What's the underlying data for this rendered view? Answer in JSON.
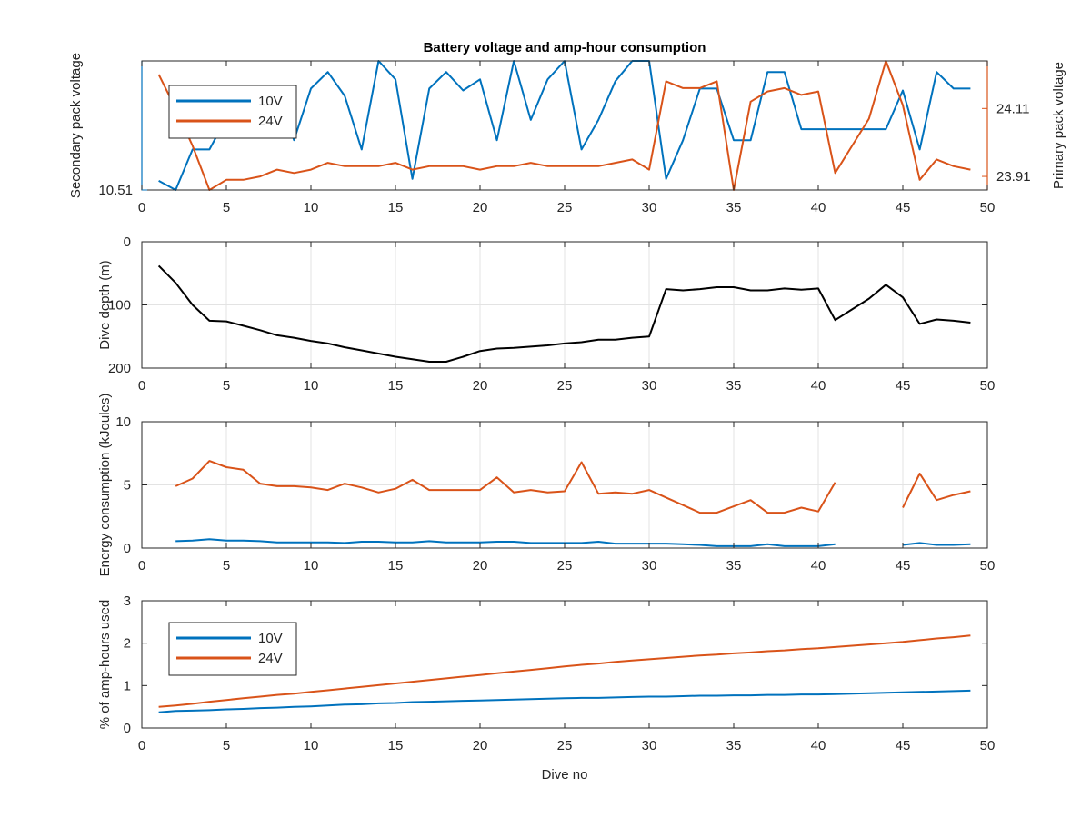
{
  "figure_title": "Battery voltage and amp-hour consumption",
  "x_axis_label": "Dive no",
  "chart_data": [
    {
      "type": "line",
      "title": "Battery voltage and amp-hour consumption",
      "xlabel": "",
      "xlim": [
        0,
        50
      ],
      "xticks": [
        0,
        5,
        10,
        15,
        20,
        25,
        30,
        35,
        40,
        45,
        50
      ],
      "legend": "top-left",
      "grid": false,
      "dual_y_axis": true,
      "y_left": {
        "label": "Secondary pack voltage",
        "ylim": [
          10.51,
          10.58
        ],
        "ticks": [
          10.51
        ],
        "tick_labels": [
          "10.51"
        ],
        "color": "#0072BD"
      },
      "y_right": {
        "label": "Primary pack voltage",
        "ylim": [
          23.87,
          24.25
        ],
        "ticks": [
          23.91,
          24.11
        ],
        "tick_labels": [
          "23.91",
          "24.11"
        ],
        "color": "#D95319"
      },
      "x": [
        1,
        2,
        3,
        4,
        5,
        6,
        7,
        8,
        9,
        10,
        11,
        12,
        13,
        14,
        15,
        16,
        17,
        18,
        19,
        20,
        21,
        22,
        23,
        24,
        25,
        26,
        27,
        28,
        29,
        30,
        31,
        32,
        33,
        34,
        35,
        36,
        37,
        38,
        39,
        40,
        41,
        42,
        43,
        44,
        45,
        46,
        47,
        48,
        49
      ],
      "series": [
        {
          "name": "10V",
          "axis": "left",
          "color": "#0072BD",
          "values": [
            10.515,
            10.51,
            10.532,
            10.532,
            10.549,
            10.541,
            10.555,
            10.566,
            10.537,
            10.565,
            10.574,
            10.561,
            10.532,
            10.58,
            10.57,
            10.516,
            10.565,
            10.574,
            10.564,
            10.57,
            10.537,
            10.58,
            10.548,
            10.57,
            10.58,
            10.532,
            10.548,
            10.569,
            10.58,
            10.58,
            10.516,
            10.537,
            10.565,
            10.565,
            10.537,
            10.537,
            10.574,
            10.574,
            10.543,
            10.543,
            10.543,
            10.543,
            10.543,
            10.543,
            10.564,
            10.532,
            10.574,
            10.565,
            10.565
          ]
        },
        {
          "name": "24V",
          "axis": "right",
          "color": "#D95319",
          "values": [
            24.21,
            24.11,
            24.0,
            23.87,
            23.9,
            23.9,
            23.91,
            23.93,
            23.92,
            23.93,
            23.95,
            23.94,
            23.94,
            23.94,
            23.95,
            23.93,
            23.94,
            23.94,
            23.94,
            23.93,
            23.94,
            23.94,
            23.95,
            23.94,
            23.94,
            23.94,
            23.94,
            23.95,
            23.96,
            23.93,
            24.19,
            24.17,
            24.17,
            24.19,
            23.87,
            24.13,
            24.16,
            24.17,
            24.15,
            24.16,
            23.92,
            24.0,
            24.08,
            24.25,
            24.12,
            23.9,
            23.96,
            23.94,
            23.93
          ]
        }
      ]
    },
    {
      "type": "line",
      "title": "",
      "xlabel": "",
      "ylabel": "Dive depth (m)",
      "xlim": [
        0,
        50
      ],
      "ylim": [
        0,
        200
      ],
      "y_reversed": true,
      "xticks": [
        0,
        5,
        10,
        15,
        20,
        25,
        30,
        35,
        40,
        45,
        50
      ],
      "yticks": [
        0,
        100,
        200
      ],
      "grid": true,
      "x": [
        1,
        2,
        3,
        4,
        5,
        6,
        7,
        8,
        9,
        10,
        11,
        12,
        13,
        14,
        15,
        16,
        17,
        18,
        19,
        20,
        21,
        22,
        23,
        24,
        25,
        26,
        27,
        28,
        29,
        30,
        31,
        32,
        33,
        34,
        35,
        36,
        37,
        38,
        39,
        40,
        41,
        42,
        43,
        44,
        45,
        46,
        47,
        48,
        49
      ],
      "series": [
        {
          "color": "#000000",
          "values": [
            38,
            65,
            100,
            125,
            126,
            133,
            140,
            148,
            152,
            157,
            161,
            167,
            172,
            177,
            182,
            186,
            190,
            190,
            182,
            173,
            169,
            168,
            166,
            164,
            161,
            159,
            155,
            155,
            152,
            150,
            75,
            77,
            75,
            72,
            72,
            77,
            77,
            74,
            76,
            74,
            124,
            107,
            90,
            68,
            88,
            130,
            123,
            125,
            128
          ]
        }
      ]
    },
    {
      "type": "line",
      "title": "",
      "xlabel": "",
      "ylabel": "Energy consumption (kJoules)",
      "xlim": [
        0,
        50
      ],
      "ylim": [
        0,
        10
      ],
      "xticks": [
        0,
        5,
        10,
        15,
        20,
        25,
        30,
        35,
        40,
        45,
        50
      ],
      "yticks": [
        0,
        5,
        10
      ],
      "grid": true,
      "x": [
        1,
        2,
        3,
        4,
        5,
        6,
        7,
        8,
        9,
        10,
        11,
        12,
        13,
        14,
        15,
        16,
        17,
        18,
        19,
        20,
        21,
        22,
        23,
        24,
        25,
        26,
        27,
        28,
        29,
        30,
        31,
        32,
        33,
        34,
        35,
        36,
        37,
        38,
        39,
        40,
        41,
        42,
        43,
        44,
        45,
        46,
        47,
        48,
        49
      ],
      "series": [
        {
          "color": "#0072BD",
          "values": [
            null,
            0.55,
            0.6,
            0.7,
            0.6,
            0.6,
            0.55,
            0.45,
            0.45,
            0.45,
            0.45,
            0.4,
            0.5,
            0.5,
            0.45,
            0.45,
            0.55,
            0.45,
            0.45,
            0.45,
            0.5,
            0.5,
            0.4,
            0.4,
            0.4,
            0.4,
            0.5,
            0.35,
            0.35,
            0.35,
            0.35,
            0.3,
            0.25,
            0.15,
            0.15,
            0.15,
            0.3,
            0.15,
            0.15,
            0.15,
            0.3,
            null,
            null,
            null,
            0.25,
            0.4,
            0.25,
            0.25,
            0.3
          ]
        },
        {
          "color": "#D95319",
          "values": [
            null,
            4.9,
            5.5,
            6.9,
            6.4,
            6.2,
            5.1,
            4.9,
            4.9,
            4.8,
            4.6,
            5.1,
            4.8,
            4.4,
            4.7,
            5.4,
            4.6,
            4.6,
            4.6,
            4.6,
            5.6,
            4.4,
            4.6,
            4.4,
            4.5,
            6.8,
            4.3,
            4.4,
            4.3,
            4.6,
            4.0,
            3.4,
            2.8,
            2.8,
            3.3,
            3.8,
            2.8,
            2.8,
            3.2,
            2.9,
            5.2,
            null,
            null,
            null,
            3.2,
            5.9,
            3.8,
            4.2,
            4.5
          ]
        }
      ]
    },
    {
      "type": "line",
      "title": "",
      "xlabel": "Dive no",
      "ylabel": "% of amp-hours used",
      "xlim": [
        0,
        50
      ],
      "ylim": [
        0,
        3
      ],
      "xticks": [
        0,
        5,
        10,
        15,
        20,
        25,
        30,
        35,
        40,
        45,
        50
      ],
      "yticks": [
        0,
        1,
        2,
        3
      ],
      "grid": false,
      "legend": "top-left",
      "x": [
        1,
        2,
        3,
        4,
        5,
        6,
        7,
        8,
        9,
        10,
        11,
        12,
        13,
        14,
        15,
        16,
        17,
        18,
        19,
        20,
        21,
        22,
        23,
        24,
        25,
        26,
        27,
        28,
        29,
        30,
        31,
        32,
        33,
        34,
        35,
        36,
        37,
        38,
        39,
        40,
        41,
        42,
        43,
        44,
        45,
        46,
        47,
        48,
        49
      ],
      "series": [
        {
          "name": "10V",
          "color": "#0072BD",
          "values": [
            0.37,
            0.4,
            0.41,
            0.42,
            0.44,
            0.45,
            0.47,
            0.48,
            0.5,
            0.51,
            0.53,
            0.55,
            0.56,
            0.58,
            0.59,
            0.61,
            0.62,
            0.63,
            0.64,
            0.65,
            0.66,
            0.67,
            0.68,
            0.69,
            0.7,
            0.71,
            0.71,
            0.72,
            0.73,
            0.74,
            0.74,
            0.75,
            0.76,
            0.76,
            0.77,
            0.77,
            0.78,
            0.78,
            0.79,
            0.79,
            0.8,
            0.81,
            0.82,
            0.83,
            0.84,
            0.85,
            0.86,
            0.87,
            0.88
          ]
        },
        {
          "name": "24V",
          "color": "#D95319",
          "values": [
            0.5,
            0.53,
            0.57,
            0.62,
            0.66,
            0.7,
            0.74,
            0.78,
            0.81,
            0.85,
            0.89,
            0.93,
            0.97,
            1.01,
            1.05,
            1.09,
            1.13,
            1.17,
            1.21,
            1.25,
            1.29,
            1.33,
            1.37,
            1.41,
            1.45,
            1.49,
            1.52,
            1.56,
            1.59,
            1.62,
            1.65,
            1.68,
            1.71,
            1.73,
            1.76,
            1.78,
            1.81,
            1.83,
            1.86,
            1.88,
            1.91,
            1.94,
            1.97,
            2.0,
            2.03,
            2.07,
            2.11,
            2.14,
            2.18
          ]
        }
      ]
    }
  ]
}
